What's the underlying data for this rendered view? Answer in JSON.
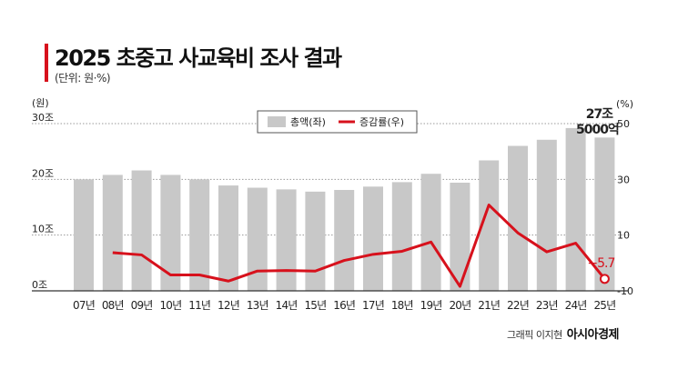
{
  "title": "2025 초중고 사교육비 조사 결과",
  "unit_note": "(단위: 원·%)",
  "credit": "그래픽 이지현",
  "brand": "아시아경제",
  "colors": {
    "bar": "#c8c8c8",
    "line": "#d7111c",
    "accent": "#d7111c"
  },
  "chart_data": {
    "type": "bar+line",
    "categories": [
      "07년",
      "08년",
      "09년",
      "10년",
      "11년",
      "12년",
      "13년",
      "14년",
      "15년",
      "16년",
      "17년",
      "18년",
      "19년",
      "20년",
      "21년",
      "22년",
      "23년",
      "24년",
      "25년"
    ],
    "series": [
      {
        "name": "총액(좌)",
        "type": "bar",
        "axis": "left",
        "values": [
          20.0,
          20.8,
          21.6,
          20.8,
          20.0,
          18.9,
          18.5,
          18.2,
          17.8,
          18.1,
          18.7,
          19.5,
          21.0,
          19.4,
          23.4,
          26.0,
          27.1,
          29.2,
          27.5
        ]
      },
      {
        "name": "증감률(우)",
        "type": "line",
        "axis": "right",
        "values": [
          null,
          3.7,
          2.9,
          -4.3,
          -4.3,
          -6.5,
          -2.9,
          -2.7,
          -2.9,
          0.9,
          3.1,
          4.2,
          7.5,
          -8.4,
          20.8,
          10.8,
          4.0,
          7.1,
          -5.7
        ]
      }
    ],
    "left_axis": {
      "label": "(원)",
      "range": [
        0,
        30
      ],
      "ticks": [
        "0조",
        "10조",
        "20조",
        "30조"
      ]
    },
    "right_axis": {
      "label": "(%)",
      "range": [
        -10,
        50
      ],
      "ticks": [
        "-10",
        "10",
        "30",
        "50"
      ]
    },
    "annotations": {
      "last_bar_line1": "27조",
      "last_bar_line2": "5000억",
      "last_rate": "−5.7"
    },
    "legend_position": "top-center",
    "grid": "dotted horizontal"
  }
}
